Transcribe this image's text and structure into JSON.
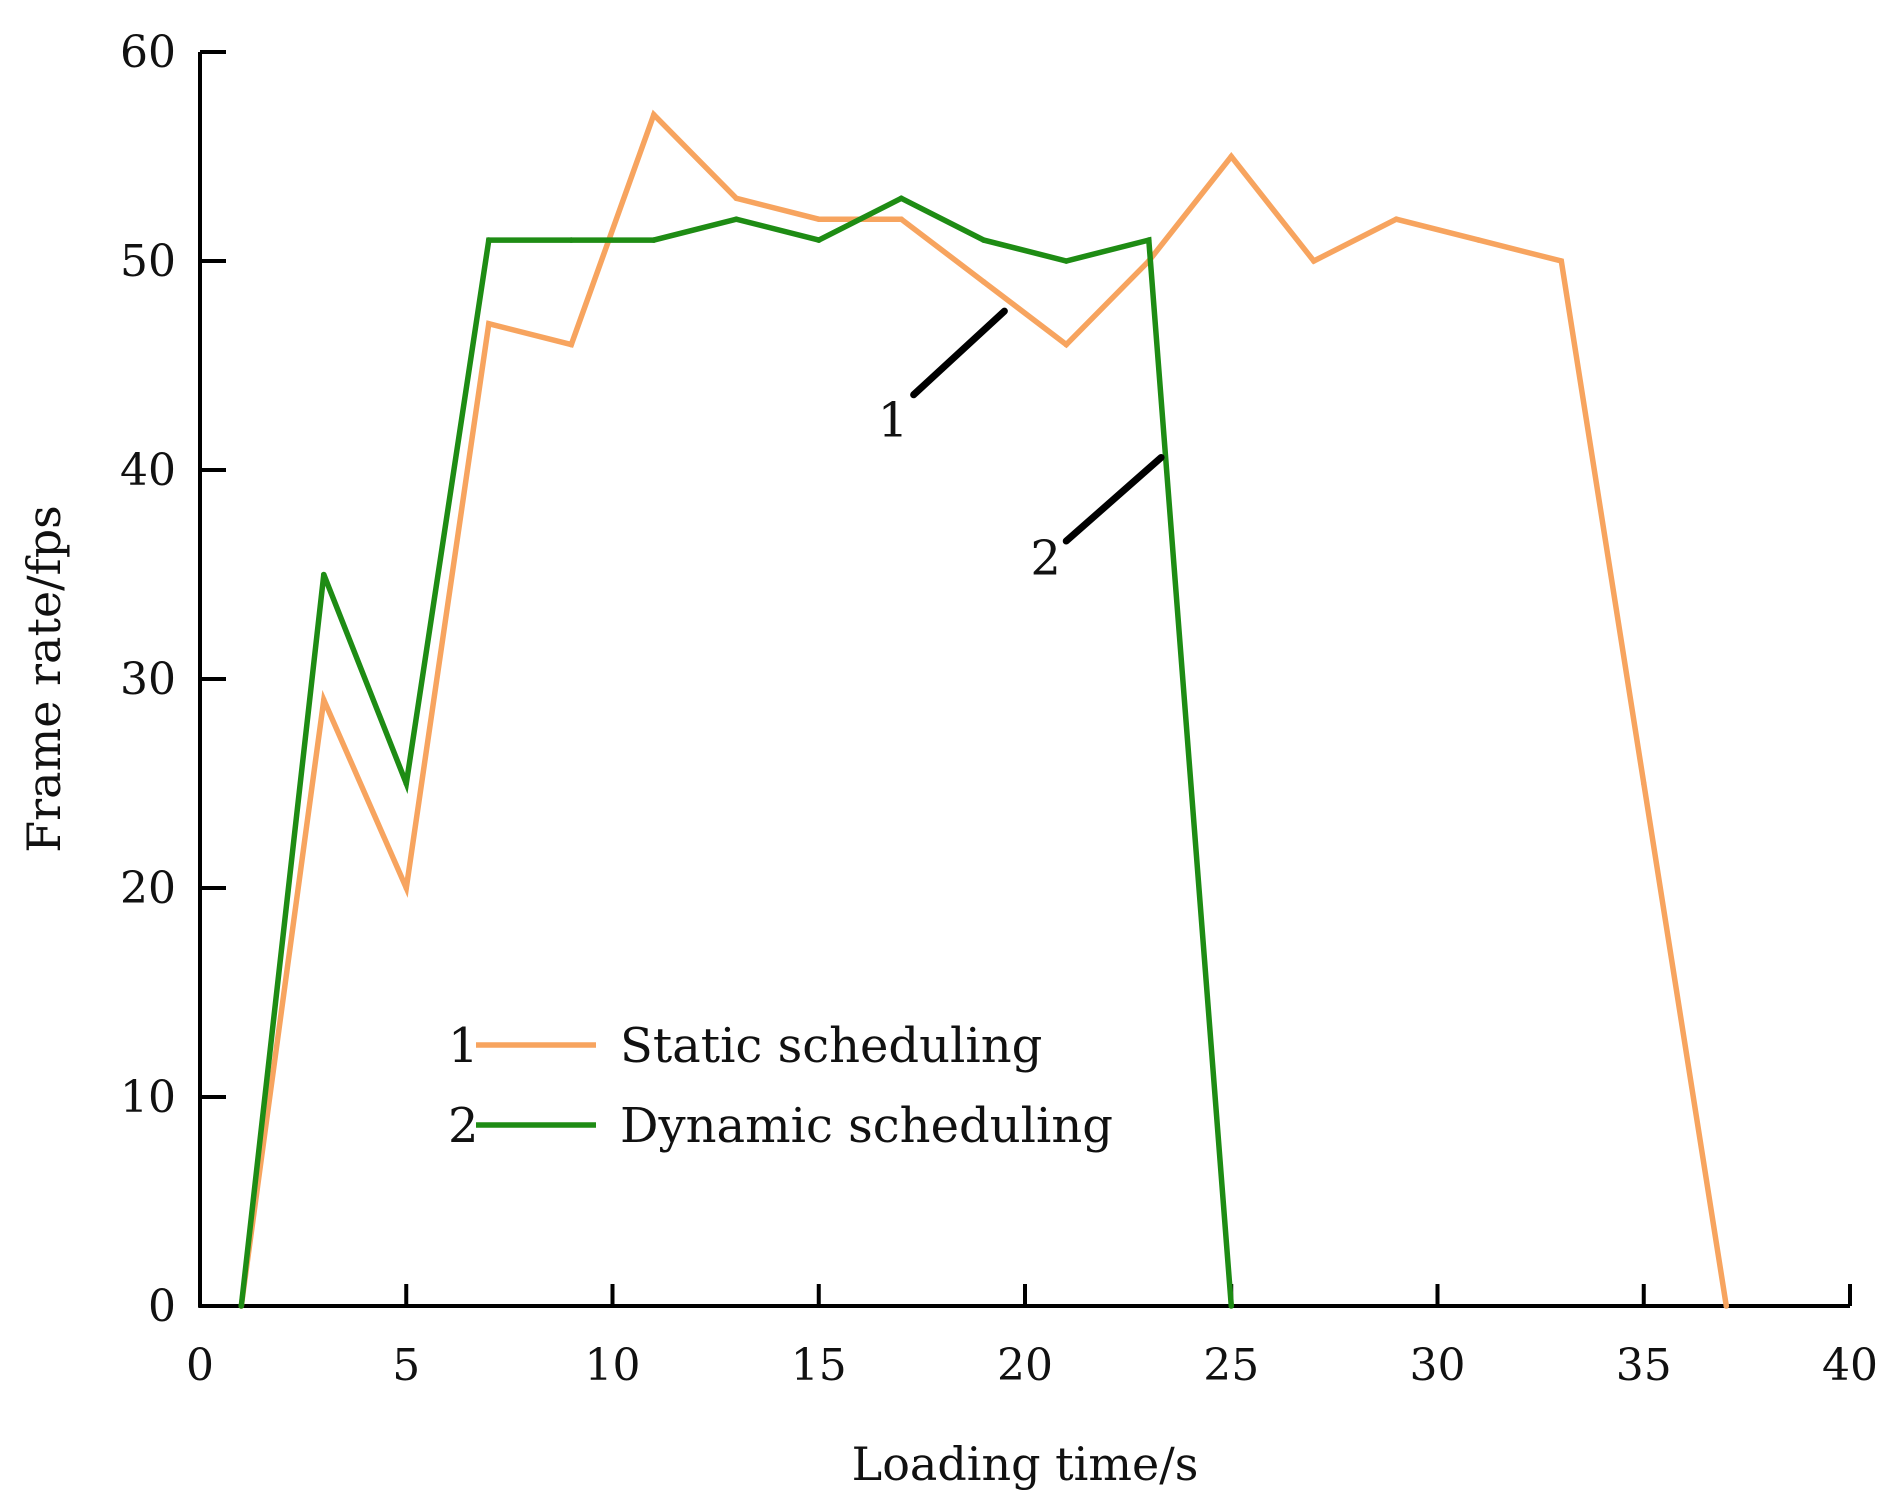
{
  "chart_data": {
    "type": "line",
    "title": "",
    "xlabel": "Loading time/s",
    "ylabel": "Frame rate/fps",
    "xlim": [
      0,
      40
    ],
    "ylim": [
      0,
      60
    ],
    "xticks": [
      0,
      5,
      10,
      15,
      20,
      25,
      30,
      35,
      40
    ],
    "yticks": [
      0,
      10,
      20,
      30,
      40,
      50,
      60
    ],
    "xtick_labels": [
      "0",
      "5",
      "10",
      "15",
      "20",
      "25",
      "30",
      "35",
      "40"
    ],
    "ytick_labels": [
      "0",
      "10",
      "20",
      "30",
      "40",
      "50",
      "60"
    ],
    "grid": false,
    "legend_position": "lower-center",
    "series": [
      {
        "id": "1",
        "name": "Static scheduling",
        "color": "#F7A45F",
        "x": [
          1,
          3,
          5,
          7,
          9,
          11,
          13,
          15,
          17,
          19,
          21,
          23,
          25,
          27,
          29,
          31,
          33,
          35,
          37
        ],
        "values": [
          0,
          29,
          20,
          47,
          46,
          57,
          53,
          52,
          52,
          49,
          46,
          50,
          55,
          50,
          52,
          51,
          50,
          25,
          0
        ]
      },
      {
        "id": "2",
        "name": "Dynamic scheduling",
        "color": "#1E8C14",
        "x": [
          1,
          3,
          5,
          7,
          9,
          11,
          13,
          15,
          17,
          19,
          21,
          23,
          25
        ],
        "values": [
          0,
          35,
          25,
          51,
          51,
          51,
          52,
          51,
          53,
          51,
          50,
          51,
          0
        ]
      }
    ],
    "legend": [
      {
        "marker": "1",
        "label": "Static scheduling"
      },
      {
        "marker": "2",
        "label": "Dynamic scheduling"
      }
    ],
    "annotations": [
      {
        "text": "1",
        "series": "1",
        "from": [
          17.3,
          43.6
        ],
        "to": [
          19.5,
          47.6
        ],
        "text_at": [
          16.8,
          41.6
        ]
      },
      {
        "text": "2",
        "series": "2",
        "from": [
          21.0,
          36.6
        ],
        "to": [
          23.3,
          40.6
        ],
        "text_at": [
          20.5,
          35.0
        ]
      }
    ],
    "axis_color": "#000000",
    "annotation_color": "#000000"
  }
}
